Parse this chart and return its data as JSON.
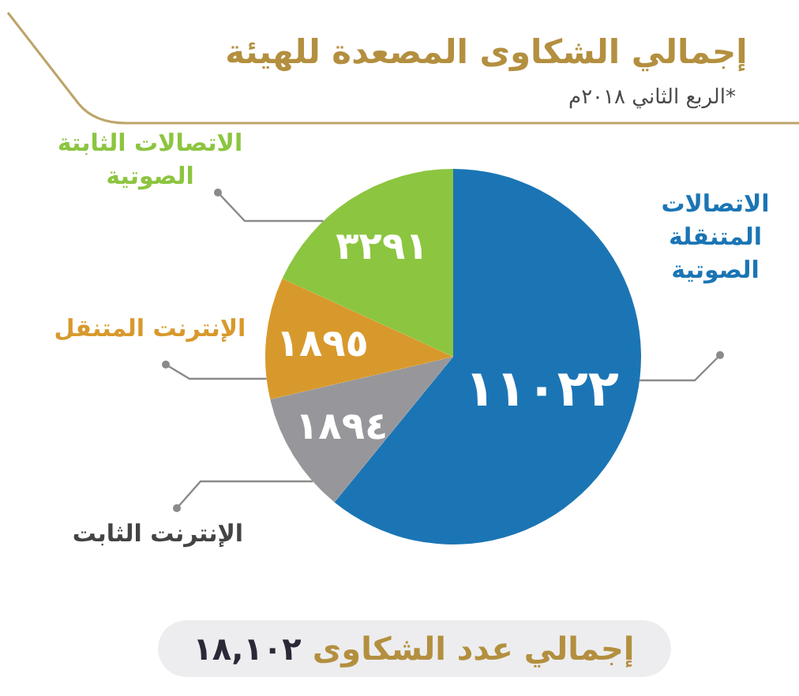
{
  "chart_data": {
    "type": "pie",
    "title": "إجمالي الشكاوى المصعدة للهيئة",
    "subtitle": "*الربع الثاني ٢٠١٨م",
    "categories": [
      "الاتصالات المتنقلة الصوتية",
      "الإنترنت الثابت",
      "الإنترنت المتنقل",
      "الاتصالات الثابتة الصوتية"
    ],
    "values": [
      11022,
      1894,
      1895,
      3291
    ],
    "colors": [
      "#1b75b4",
      "#97979b",
      "#d8992c",
      "#8cc540"
    ],
    "value_labels": [
      "١١٠٢٢",
      "١٨٩٤",
      "١٨٩٥",
      "٣٢٩١"
    ],
    "annotations": [
      "إجمالي عدد الشكاوى ١٨,١٠٢"
    ]
  }
}
